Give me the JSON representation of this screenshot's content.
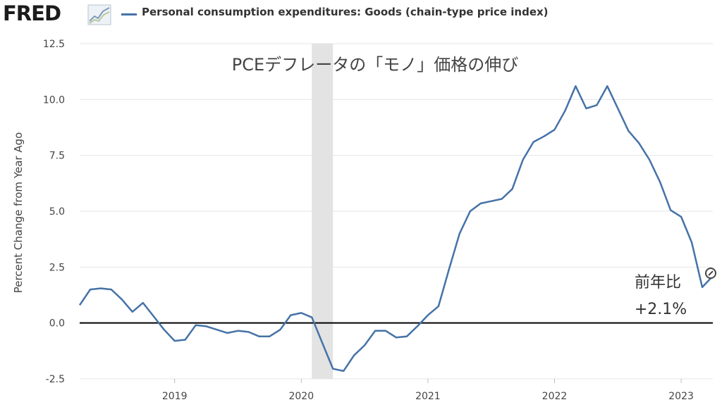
{
  "header": {
    "logo_text": "FRED",
    "legend_label": "Personal consumption expenditures: Goods (chain-type price index)",
    "series_color": "#4572a7"
  },
  "chart_data": {
    "type": "line",
    "title": "PCEデフレータの「モノ」価格の伸び",
    "ylabel": "Percent Change from Year Ago",
    "xlabel": "",
    "ylim": [
      -2.5,
      12.5
    ],
    "yticks": [
      "12.5",
      "10.0",
      "7.5",
      "5.0",
      "2.5",
      "0.0",
      "-2.5"
    ],
    "xticks": [
      "2019",
      "2020",
      "2021",
      "2022",
      "2023"
    ],
    "grid": true,
    "recession_shading": [
      "2020-02",
      "2020-04"
    ],
    "annotation": {
      "line1": "前年比",
      "line2": "+2.1%"
    },
    "series": [
      {
        "name": "Personal consumption expenditures: Goods (chain-type price index)",
        "color": "#4572a7",
        "x": [
          "2018-04",
          "2018-05",
          "2018-06",
          "2018-07",
          "2018-08",
          "2018-09",
          "2018-10",
          "2018-11",
          "2018-12",
          "2019-01",
          "2019-02",
          "2019-03",
          "2019-04",
          "2019-05",
          "2019-06",
          "2019-07",
          "2019-08",
          "2019-09",
          "2019-10",
          "2019-11",
          "2019-12",
          "2020-01",
          "2020-02",
          "2020-03",
          "2020-04",
          "2020-05",
          "2020-06",
          "2020-07",
          "2020-08",
          "2020-09",
          "2020-10",
          "2020-11",
          "2020-12",
          "2021-01",
          "2021-02",
          "2021-03",
          "2021-04",
          "2021-05",
          "2021-06",
          "2021-07",
          "2021-08",
          "2021-09",
          "2021-10",
          "2021-11",
          "2021-12",
          "2022-01",
          "2022-02",
          "2022-03",
          "2022-04",
          "2022-05",
          "2022-06",
          "2022-07",
          "2022-08",
          "2022-09",
          "2022-10",
          "2022-11",
          "2022-12",
          "2023-01",
          "2023-02",
          "2023-03",
          "2023-04"
        ],
        "values": [
          0.8,
          1.5,
          1.55,
          1.5,
          1.05,
          0.5,
          0.9,
          0.3,
          -0.3,
          -0.8,
          -0.75,
          -0.1,
          -0.15,
          -0.3,
          -0.45,
          -0.35,
          -0.4,
          -0.6,
          -0.6,
          -0.3,
          0.35,
          0.45,
          0.25,
          -0.9,
          -2.05,
          -2.15,
          -1.45,
          -1.0,
          -0.35,
          -0.35,
          -0.65,
          -0.6,
          -0.15,
          0.35,
          0.75,
          2.4,
          4.0,
          5.0,
          5.35,
          5.45,
          5.55,
          6.0,
          7.3,
          8.1,
          8.35,
          8.65,
          9.5,
          10.6,
          9.6,
          9.75,
          10.6,
          9.6,
          8.6,
          8.05,
          7.3,
          6.3,
          5.05,
          4.75,
          3.6,
          1.6,
          2.1
        ]
      }
    ]
  }
}
